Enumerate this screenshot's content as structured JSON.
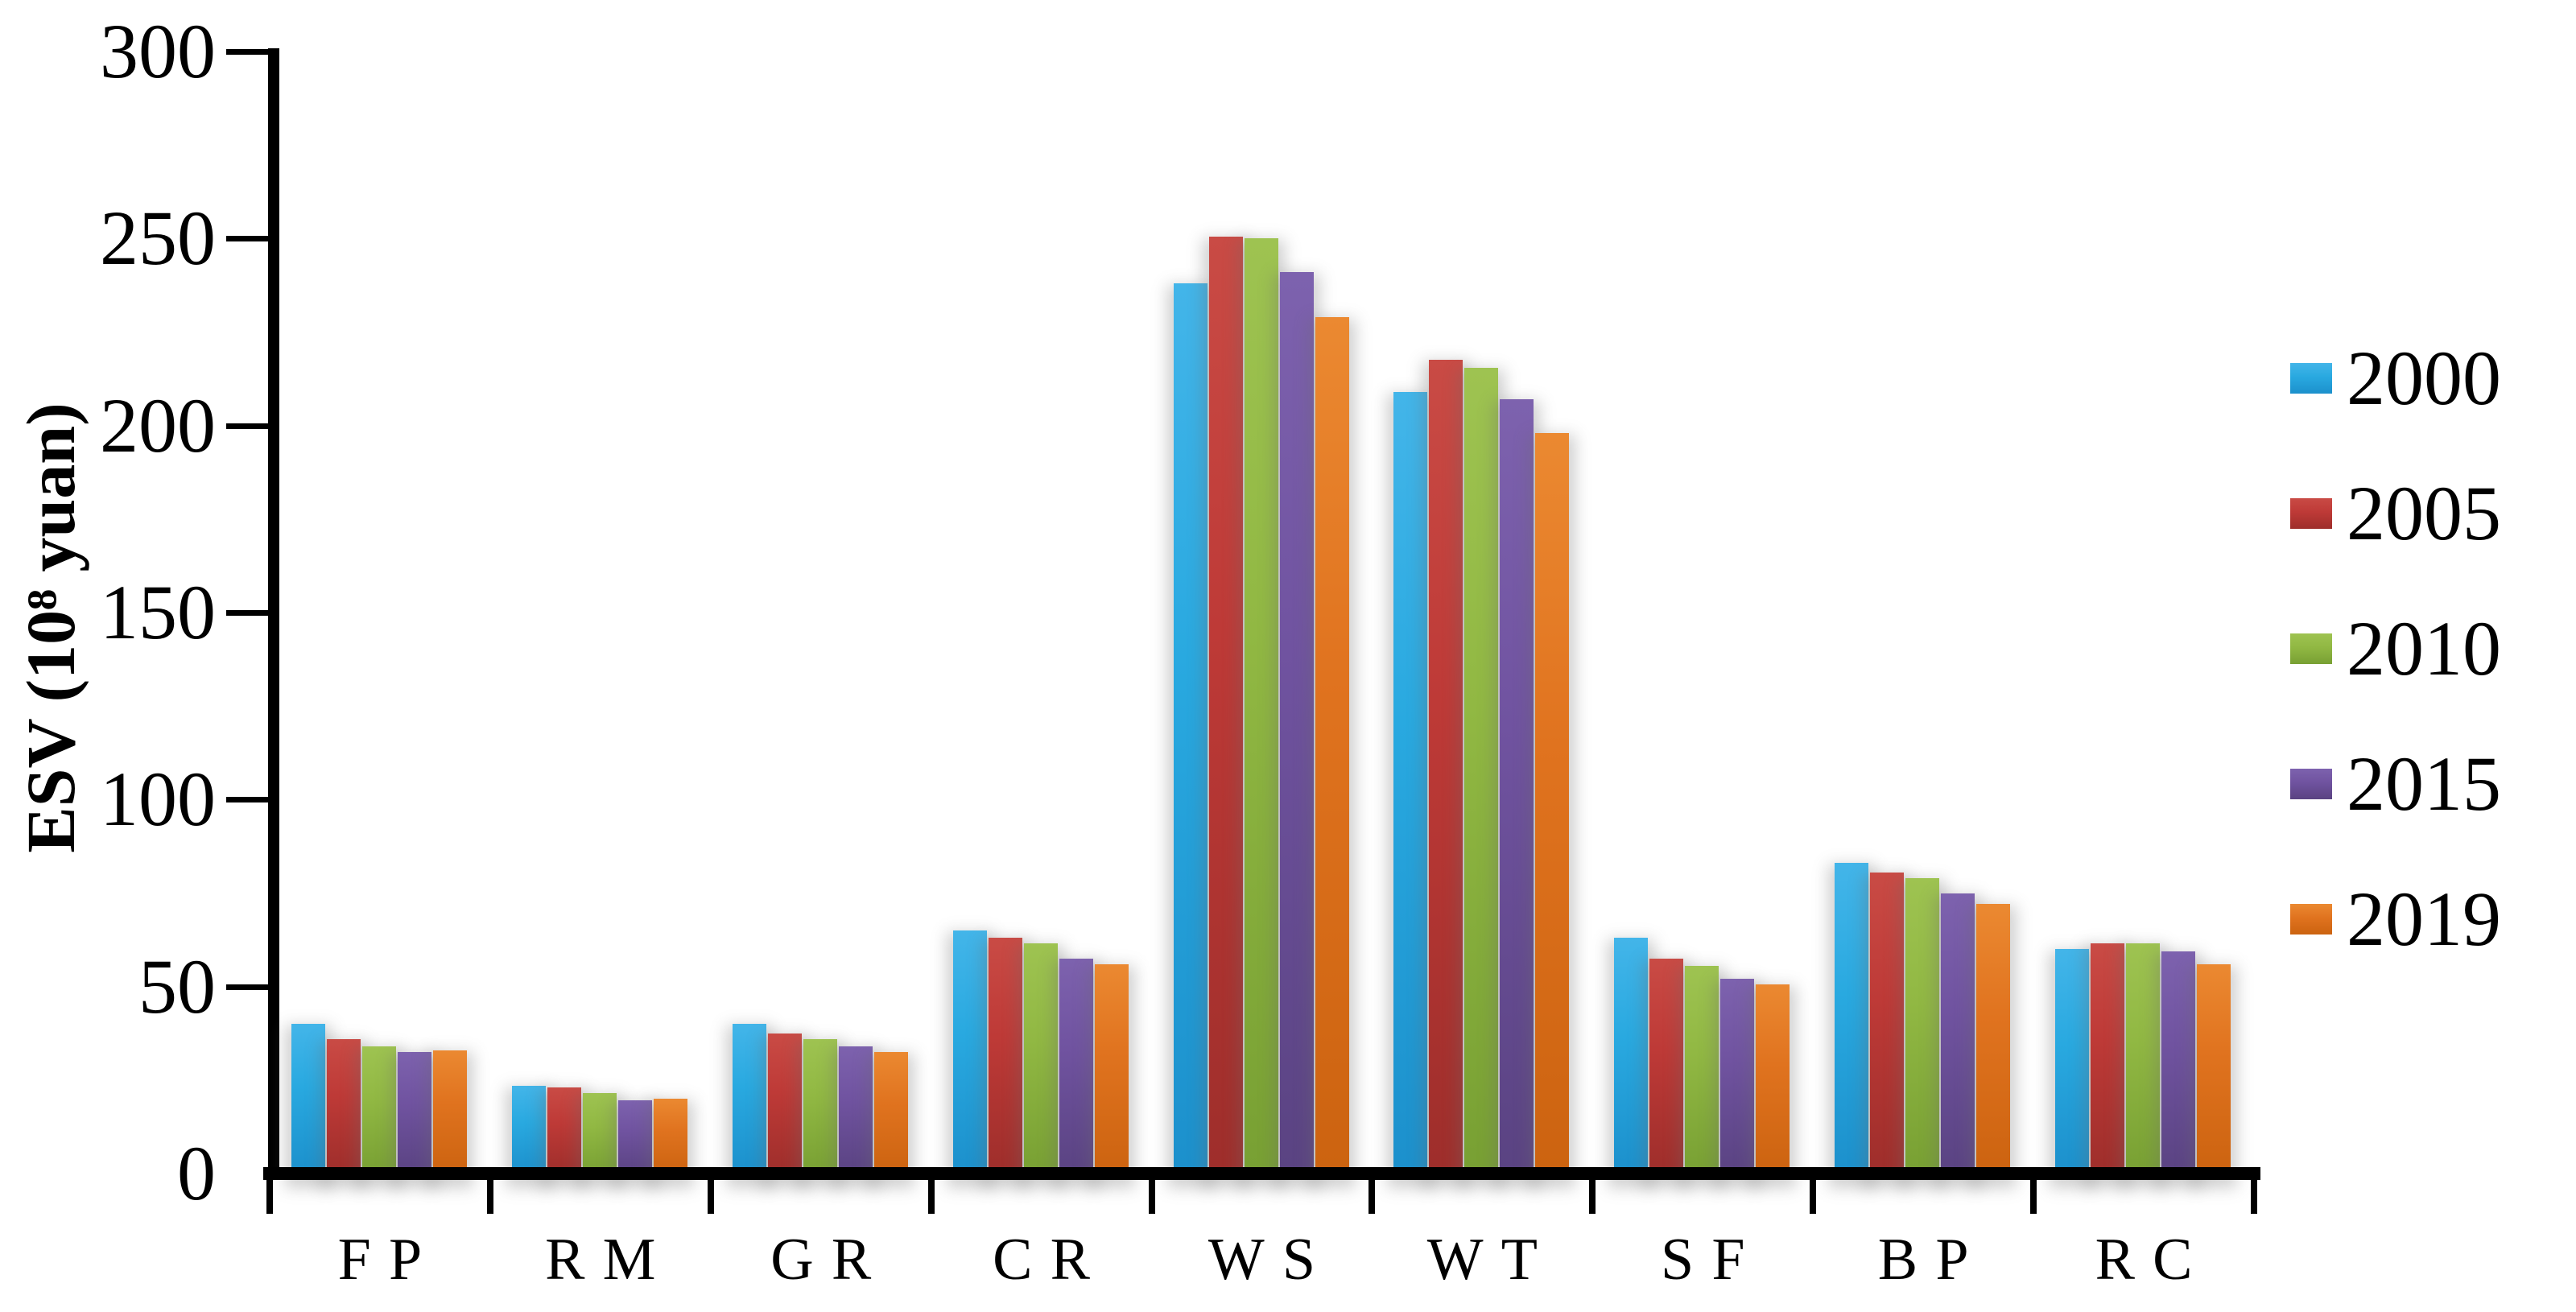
{
  "chart_data": {
    "type": "bar",
    "title": "",
    "xlabel": "",
    "ylabel": "ESV (10⁸ yuan)",
    "categories": [
      "FP",
      "RM",
      "GR",
      "CR",
      "WS",
      "WT",
      "SF",
      "BP",
      "RC"
    ],
    "series": [
      {
        "name": "2000",
        "color": "#29A9E0",
        "color_light": "#43B5E9",
        "color_dark": "#1C90CC",
        "values": [
          40,
          23.5,
          40,
          65,
          238,
          209,
          63,
          83,
          60
        ]
      },
      {
        "name": "2005",
        "color": "#BE3A37",
        "color_light": "#C94B45",
        "color_dark": "#9E2E2B",
        "values": [
          36,
          23,
          37.5,
          63,
          250.5,
          217.5,
          57.5,
          80.5,
          61.5
        ]
      },
      {
        "name": "2010",
        "color": "#91B843",
        "color_light": "#9EC351",
        "color_dark": "#78A033",
        "values": [
          34,
          21.5,
          36,
          61.5,
          250,
          215.5,
          55.5,
          79,
          61.5
        ]
      },
      {
        "name": "2015",
        "color": "#7053A0",
        "color_light": "#7D62AE",
        "color_dark": "#5A4382",
        "values": [
          32.5,
          19.5,
          34,
          57.5,
          241,
          207,
          52,
          75,
          59.5
        ]
      },
      {
        "name": "2019",
        "color": "#E0731F",
        "color_light": "#EB8931",
        "color_dark": "#CC6310",
        "values": [
          33,
          20,
          32.5,
          56,
          229,
          198,
          50.5,
          72,
          56
        ]
      }
    ],
    "ylim": [
      0,
      300
    ],
    "yticks": [
      0,
      50,
      100,
      150,
      200,
      250,
      300
    ],
    "grid": false,
    "legend_position": "right",
    "axis_color": "#000000",
    "background_color": "#FFFFFF"
  }
}
